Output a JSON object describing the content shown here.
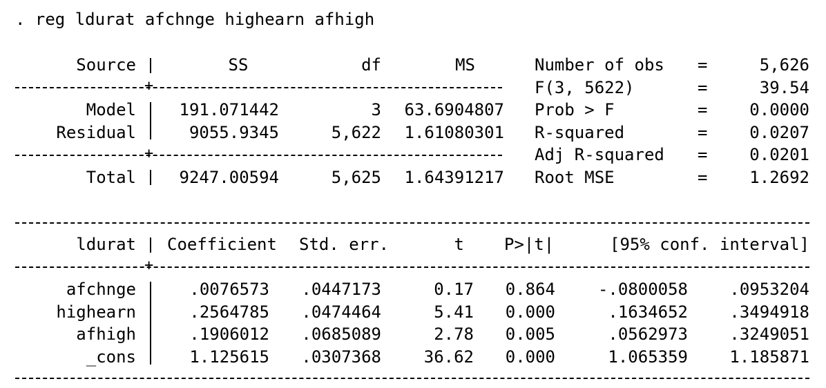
{
  "command": ". reg ldurat afchnge highearn afhigh",
  "anova": {
    "headers": {
      "source": "Source",
      "ss": "SS",
      "df": "df",
      "ms": "MS"
    },
    "rows": [
      {
        "source": "Model",
        "ss": "191.071442",
        "df": "3",
        "ms": "63.6904807"
      },
      {
        "source": "Residual",
        "ss": "9055.9345",
        "df": "5,622",
        "ms": "1.61080301"
      },
      {
        "source": "Total",
        "ss": "9247.00594",
        "df": "5,625",
        "ms": "1.64391217"
      }
    ]
  },
  "stats": [
    {
      "label": "Number of obs",
      "eq": "=",
      "value": "5,626"
    },
    {
      "label": "F(3, 5622)",
      "eq": "=",
      "value": "39.54"
    },
    {
      "label": "Prob > F",
      "eq": "=",
      "value": "0.0000"
    },
    {
      "label": "R-squared",
      "eq": "=",
      "value": "0.0207"
    },
    {
      "label": "Adj R-squared",
      "eq": "=",
      "value": "0.0201"
    },
    {
      "label": "Root MSE",
      "eq": "=",
      "value": "1.2692"
    }
  ],
  "coef": {
    "headers": {
      "var": "ldurat",
      "coef": "Coefficient",
      "se": "Std. err.",
      "t": "t",
      "p": "P>|t|",
      "ci": "[95% conf. interval]"
    },
    "rows": [
      {
        "var": "afchnge",
        "coef": ".0076573",
        "se": ".0447173",
        "t": "0.17",
        "p": "0.864",
        "lo": "-.0800058",
        "hi": ".0953204"
      },
      {
        "var": "highearn",
        "coef": ".2564785",
        "se": ".0474464",
        "t": "5.41",
        "p": "0.000",
        "lo": ".1634652",
        "hi": ".3494918"
      },
      {
        "var": "afhigh",
        "coef": ".1906012",
        "se": ".0685089",
        "t": "2.78",
        "p": "0.005",
        "lo": ".0562973",
        "hi": ".3249051"
      },
      {
        "var": "_cons",
        "coef": "1.125615",
        "se": ".0307368",
        "t": "36.62",
        "p": "0.000",
        "lo": "1.065359",
        "hi": "1.185871"
      }
    ]
  }
}
